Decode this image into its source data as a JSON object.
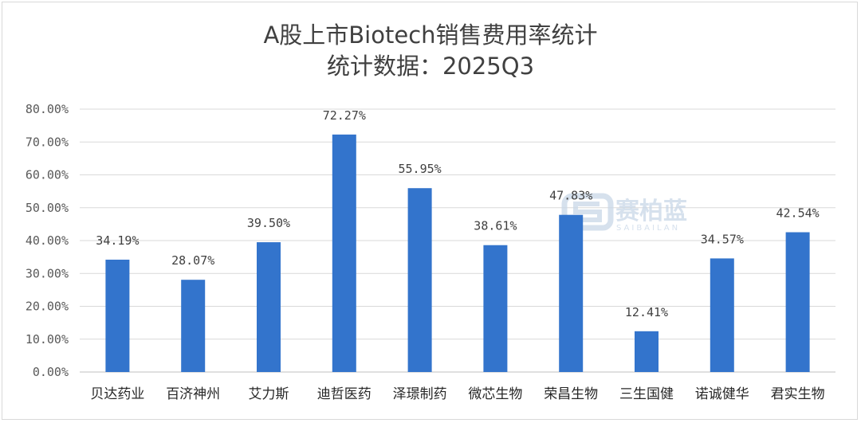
{
  "chart_data": {
    "type": "bar",
    "title": "A股上市Biotech销售费用率统计",
    "subtitle": "统计数据：2025Q3",
    "xlabel": "",
    "ylabel": "",
    "ylim": [
      0,
      0.8
    ],
    "yticks": [
      "0.00%",
      "10.00%",
      "20.00%",
      "30.00%",
      "40.00%",
      "50.00%",
      "60.00%",
      "70.00%",
      "80.00%"
    ],
    "grid": true,
    "bar_color": "#3374cc",
    "categories": [
      "贝达药业",
      "百济神州",
      "艾力斯",
      "迪哲医药",
      "泽璟制药",
      "微芯生物",
      "荣昌生物",
      "三生国健",
      "诺诚健华",
      "君实生物"
    ],
    "values": [
      0.3419,
      0.2807,
      0.395,
      0.7227,
      0.5595,
      0.3861,
      0.4783,
      0.1241,
      0.3457,
      0.4254
    ],
    "value_labels": [
      "34.19%",
      "28.07%",
      "39.50%",
      "72.27%",
      "55.95%",
      "38.61%",
      "47.83%",
      "12.41%",
      "34.57%",
      "42.54%"
    ]
  },
  "watermark": {
    "text_cn": "赛柏蓝",
    "text_en": "SAIBAILAN",
    "color": "#c9d7e8"
  }
}
